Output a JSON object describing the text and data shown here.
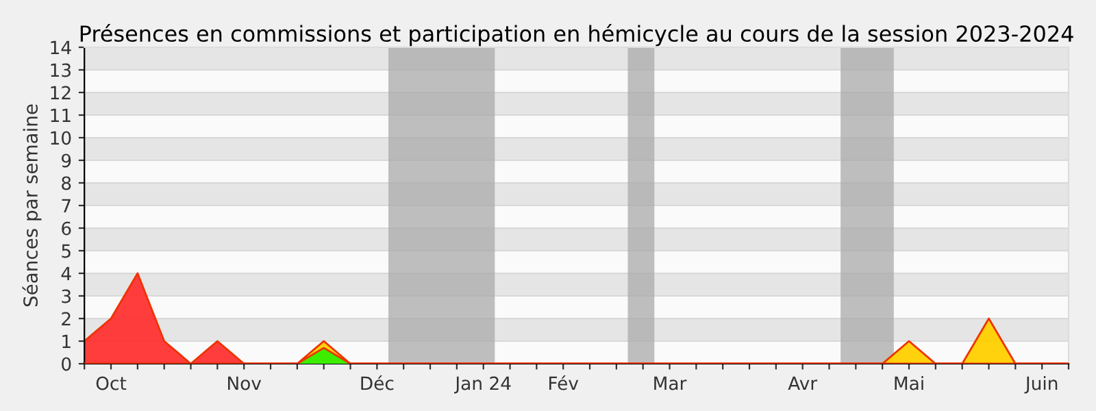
{
  "chart_data": {
    "type": "area",
    "title": "Présences en commissions et participation en hémicycle au cours de la session 2023-2024",
    "ylabel": "Séances par semaine",
    "x": [
      "2023-10-01",
      "2023-10-08",
      "2023-10-15",
      "2023-10-22",
      "2023-10-29",
      "2023-11-05",
      "2023-11-12",
      "2023-11-19",
      "2023-11-26",
      "2023-12-03",
      "2023-12-10",
      "2023-12-17",
      "2023-12-24",
      "2023-12-31",
      "2024-01-07",
      "2024-01-14",
      "2024-01-21",
      "2024-01-28",
      "2024-02-04",
      "2024-02-11",
      "2024-02-18",
      "2024-02-25",
      "2024-03-03",
      "2024-03-10",
      "2024-03-17",
      "2024-03-24",
      "2024-03-31",
      "2024-04-07",
      "2024-04-14",
      "2024-04-21",
      "2024-04-28",
      "2024-05-05",
      "2024-05-12",
      "2024-05-19",
      "2024-05-26",
      "2024-06-02",
      "2024-06-09",
      "2024-06-16"
    ],
    "series": [
      {
        "color": "#ff3333",
        "values": [
          1,
          2,
          4,
          1,
          0,
          1,
          0,
          0,
          0,
          0,
          0,
          0,
          0,
          0,
          0,
          0,
          0,
          0,
          0,
          0,
          0,
          0,
          0,
          0,
          0,
          0,
          0,
          0,
          0,
          0,
          0,
          0,
          0,
          0,
          0,
          0,
          0,
          0
        ]
      },
      {
        "color": "#ffd000",
        "values": [
          0,
          0,
          0,
          0,
          0,
          0,
          0,
          0,
          0,
          1,
          0,
          0,
          0,
          0,
          0,
          0,
          0,
          0,
          0,
          0,
          0,
          0,
          0,
          0,
          0,
          0,
          0,
          0,
          0,
          0,
          0,
          1,
          0,
          0,
          2,
          0,
          0,
          0
        ]
      },
      {
        "color": "#33ee00",
        "values": [
          0,
          0,
          0,
          0,
          0,
          0,
          0,
          0,
          0,
          0.7,
          0,
          0,
          0,
          0,
          0,
          0,
          0,
          0,
          0,
          0,
          0,
          0,
          0,
          0,
          0,
          0,
          0,
          0,
          0,
          0,
          0,
          0,
          0,
          0,
          0,
          0,
          0,
          0
        ]
      }
    ],
    "xlim": [
      "2023-10-01",
      "2024-06-16"
    ],
    "xticks": [
      {
        "value": "2023-10-01",
        "label": null
      },
      {
        "value": "2023-10-08",
        "label": "Oct"
      },
      {
        "value": "2023-10-15",
        "label": null
      },
      {
        "value": "2023-10-22",
        "label": null
      },
      {
        "value": "2023-10-29",
        "label": null
      },
      {
        "value": "2023-11-05",
        "label": null
      },
      {
        "value": "2023-11-12",
        "label": "Nov"
      },
      {
        "value": "2023-11-19",
        "label": null
      },
      {
        "value": "2023-11-26",
        "label": null
      },
      {
        "value": "2023-12-03",
        "label": null
      },
      {
        "value": "2023-12-10",
        "label": null
      },
      {
        "value": "2023-12-17",
        "label": "Déc"
      },
      {
        "value": "2023-12-24",
        "label": null
      },
      {
        "value": "2023-12-31",
        "label": null
      },
      {
        "value": "2024-01-07",
        "label": null
      },
      {
        "value": "2024-01-14",
        "label": "Jan 24"
      },
      {
        "value": "2024-01-21",
        "label": null
      },
      {
        "value": "2024-01-28",
        "label": null
      },
      {
        "value": "2024-02-04",
        "label": "Fév"
      },
      {
        "value": "2024-02-11",
        "label": null
      },
      {
        "value": "2024-02-18",
        "label": null
      },
      {
        "value": "2024-02-25",
        "label": null
      },
      {
        "value": "2024-03-03",
        "label": "Mar"
      },
      {
        "value": "2024-03-10",
        "label": null
      },
      {
        "value": "2024-03-17",
        "label": null
      },
      {
        "value": "2024-03-24",
        "label": null
      },
      {
        "value": "2024-03-31",
        "label": null
      },
      {
        "value": "2024-04-07",
        "label": "Avr"
      },
      {
        "value": "2024-04-14",
        "label": null
      },
      {
        "value": "2024-04-21",
        "label": null
      },
      {
        "value": "2024-04-28",
        "label": null
      },
      {
        "value": "2024-05-05",
        "label": "Mai"
      },
      {
        "value": "2024-05-12",
        "label": null
      },
      {
        "value": "2024-05-19",
        "label": null
      },
      {
        "value": "2024-05-26",
        "label": null
      },
      {
        "value": "2024-06-02",
        "label": null
      },
      {
        "value": "2024-06-09",
        "label": "Juin"
      },
      {
        "value": "2024-06-16",
        "label": null
      }
    ],
    "ylim": [
      0,
      14
    ],
    "yticks": [
      0,
      1,
      2,
      3,
      4,
      5,
      6,
      7,
      8,
      9,
      10,
      11,
      12,
      13,
      14
    ],
    "grid": "y",
    "bands": [
      {
        "axis": "x",
        "from": "2023-12-20",
        "to": "2024-01-17",
        "color": "#aaaaaa"
      },
      {
        "axis": "x",
        "from": "2024-02-21",
        "to": "2024-02-28",
        "color": "#aaaaaa"
      },
      {
        "axis": "x",
        "from": "2024-04-17",
        "to": "2024-05-01",
        "color": "#aaaaaa"
      }
    ]
  }
}
